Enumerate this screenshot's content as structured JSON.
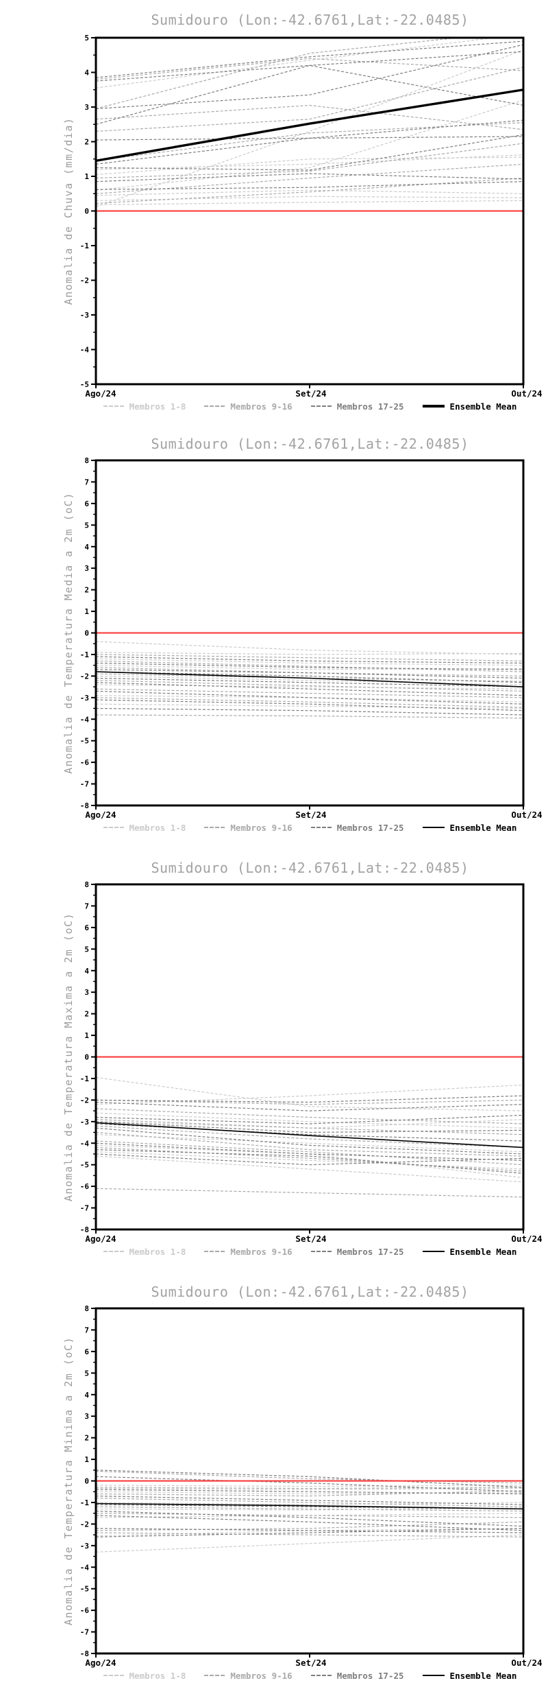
{
  "page": {
    "background": "#ffffff"
  },
  "chart_data": [
    {
      "type": "line",
      "title": "Sumidouro (Lon:-42.6761,Lat:-22.0485)",
      "ylabel": "Anomalia de Chuva (mm/dia)",
      "x_categories": [
        "Ago/24",
        "Set/24",
        "Out/24"
      ],
      "ylim": [
        -5,
        5
      ],
      "ytick_step": 1,
      "grid": false,
      "legend_position": "bottom",
      "zero_line": {
        "value": 0,
        "color": "#fa4743"
      },
      "groups": [
        {
          "name": "Membros 1-8",
          "color": "#cbcbcb",
          "lines": [
            [
              3.55,
              4.35,
              5.1
            ],
            [
              0.12,
              2.3,
              4.65
            ],
            [
              1.2,
              1.35,
              1.62
            ],
            [
              1.05,
              1.5,
              1.55
            ],
            [
              0.6,
              1.25,
              3.2
            ],
            [
              0.45,
              0.6,
              0.5
            ],
            [
              0.3,
              0.42,
              0.38
            ],
            [
              0.18,
              0.25,
              0.3
            ]
          ]
        },
        {
          "name": "Membros 9-16",
          "color": "#a9a9a9",
          "lines": [
            [
              3.8,
              4.4,
              4.05
            ],
            [
              2.95,
              4.55,
              5.2
            ],
            [
              2.65,
              3.05,
              2.35
            ],
            [
              2.3,
              2.65,
              4.15
            ],
            [
              1.45,
              2.25,
              2.55
            ],
            [
              0.95,
              1.15,
              1.95
            ],
            [
              0.5,
              0.95,
              1.35
            ],
            [
              0.22,
              0.55,
              0.95
            ]
          ]
        },
        {
          "name": "Membros 17-25",
          "color": "#7e7e7e",
          "lines": [
            [
              3.85,
              4.45,
              4.9
            ],
            [
              3.75,
              4.2,
              4.6
            ],
            [
              2.95,
              3.35,
              4.8
            ],
            [
              2.5,
              4.2,
              3.05
            ],
            [
              2.05,
              2.1,
              2.15
            ],
            [
              1.35,
              2.1,
              2.62
            ],
            [
              1.25,
              1.18,
              2.2
            ],
            [
              0.85,
              1.08,
              0.92
            ],
            [
              0.62,
              0.68,
              0.85
            ]
          ]
        }
      ],
      "ensemble_mean": {
        "name": "Ensemble Mean",
        "color": "#000000",
        "width": 3.4,
        "values": [
          1.45,
          2.52,
          3.5
        ]
      }
    },
    {
      "type": "line",
      "title": "Sumidouro (Lon:-42.6761,Lat:-22.0485)",
      "ylabel": "Anomalia de Temperatura Media a 2m (oC)",
      "x_categories": [
        "Ago/24",
        "Set/24",
        "Out/24"
      ],
      "ylim": [
        -8,
        8
      ],
      "ytick_step": 1,
      "grid": false,
      "legend_position": "bottom",
      "zero_line": {
        "value": 0,
        "color": "#fa4743"
      },
      "groups": [
        {
          "name": "Membros 1-8",
          "color": "#cbcbcb",
          "lines": [
            [
              -0.4,
              -0.8,
              -1.0
            ],
            [
              -0.9,
              -1.0,
              -0.95
            ],
            [
              -1.2,
              -1.4,
              -1.5
            ],
            [
              -1.5,
              -1.7,
              -1.65
            ],
            [
              -2.0,
              -2.2,
              -2.4
            ],
            [
              -2.4,
              -2.5,
              -2.6
            ],
            [
              -2.9,
              -3.0,
              -3.2
            ],
            [
              -3.3,
              -3.4,
              -3.5
            ]
          ]
        },
        {
          "name": "Membros 9-16",
          "color": "#a9a9a9",
          "lines": [
            [
              -1.0,
              -1.15,
              -1.3
            ],
            [
              -1.3,
              -1.55,
              -1.8
            ],
            [
              -1.6,
              -1.85,
              -2.0
            ],
            [
              -1.9,
              -2.1,
              -2.25
            ],
            [
              -2.2,
              -2.45,
              -2.7
            ],
            [
              -2.6,
              -2.8,
              -3.0
            ],
            [
              -3.0,
              -3.2,
              -3.45
            ],
            [
              -3.8,
              -3.85,
              -3.95
            ]
          ]
        },
        {
          "name": "Membros 17-25",
          "color": "#7e7e7e",
          "lines": [
            [
              -1.1,
              -1.3,
              -1.4
            ],
            [
              -1.4,
              -1.6,
              -1.7
            ],
            [
              -1.7,
              -1.85,
              -2.1
            ],
            [
              -1.8,
              -2.0,
              -2.3
            ],
            [
              -2.1,
              -2.3,
              -2.5
            ],
            [
              -2.3,
              -2.6,
              -2.9
            ],
            [
              -2.7,
              -3.0,
              -3.3
            ],
            [
              -3.1,
              -3.3,
              -3.6
            ],
            [
              -3.5,
              -3.6,
              -3.8
            ]
          ]
        }
      ],
      "ensemble_mean": {
        "name": "Ensemble Mean",
        "color": "#000000",
        "width": 1.6,
        "values": [
          -1.8,
          -2.1,
          -2.5
        ]
      }
    },
    {
      "type": "line",
      "title": "Sumidouro (Lon:-42.6761,Lat:-22.0485)",
      "ylabel": "Anomalia de Temperatura Maxima a 2m (oC)",
      "x_categories": [
        "Ago/24",
        "Set/24",
        "Out/24"
      ],
      "ylim": [
        -8,
        8
      ],
      "ytick_step": 1,
      "grid": false,
      "legend_position": "bottom",
      "zero_line": {
        "value": 0,
        "color": "#fa4743"
      },
      "groups": [
        {
          "name": "Membros 1-8",
          "color": "#cbcbcb",
          "lines": [
            [
              -0.95,
              -2.3,
              -2.5
            ],
            [
              -2.2,
              -1.8,
              -1.3
            ],
            [
              -2.6,
              -3.0,
              -3.3
            ],
            [
              -3.0,
              -3.3,
              -2.9
            ],
            [
              -3.6,
              -4.0,
              -4.4
            ],
            [
              -4.1,
              -4.5,
              -5.6
            ],
            [
              -4.4,
              -4.8,
              -5.2
            ],
            [
              -4.6,
              -5.2,
              -5.8
            ]
          ]
        },
        {
          "name": "Membros 9-16",
          "color": "#a9a9a9",
          "lines": [
            [
              -2.0,
              -2.2,
              -2.0
            ],
            [
              -2.4,
              -2.8,
              -3.1
            ],
            [
              -2.9,
              -3.3,
              -3.6
            ],
            [
              -3.2,
              -3.8,
              -4.2
            ],
            [
              -3.5,
              -4.3,
              -4.6
            ],
            [
              -3.9,
              -4.4,
              -5.0
            ],
            [
              -4.2,
              -4.7,
              -5.3
            ],
            [
              -6.1,
              -6.3,
              -6.5
            ]
          ]
        },
        {
          "name": "Membros 17-25",
          "color": "#7e7e7e",
          "lines": [
            [
              -2.0,
              -2.1,
              -1.8
            ],
            [
              -2.1,
              -2.5,
              -2.2
            ],
            [
              -2.8,
              -3.1,
              -2.7
            ],
            [
              -3.0,
              -3.5,
              -3.4
            ],
            [
              -3.1,
              -3.6,
              -3.9
            ],
            [
              -3.3,
              -4.1,
              -4.5
            ],
            [
              -4.0,
              -4.5,
              -4.8
            ],
            [
              -4.3,
              -4.6,
              -5.4
            ],
            [
              -4.5,
              -5.0,
              -4.7
            ]
          ]
        }
      ],
      "ensemble_mean": {
        "name": "Ensemble Mean",
        "color": "#000000",
        "width": 1.6,
        "values": [
          -3.05,
          -3.65,
          -4.2
        ]
      }
    },
    {
      "type": "line",
      "title": "Sumidouro (Lon:-42.6761,Lat:-22.0485)",
      "ylabel": "Anomalia de Temperatura Minima a 2m (oC)",
      "x_categories": [
        "Ago/24",
        "Set/24",
        "Out/24"
      ],
      "ylim": [
        -8,
        8
      ],
      "ytick_step": 1,
      "grid": false,
      "legend_position": "bottom",
      "zero_line": {
        "value": 0,
        "color": "#fa4743"
      },
      "groups": [
        {
          "name": "Membros 1-8",
          "color": "#cbcbcb",
          "lines": [
            [
              -0.2,
              -0.25,
              -0.2
            ],
            [
              -0.35,
              -0.4,
              -0.35
            ],
            [
              -0.5,
              -0.6,
              -0.55
            ],
            [
              -1.0,
              -1.1,
              -1.0
            ],
            [
              -1.3,
              -1.35,
              -1.25
            ],
            [
              -1.7,
              -1.6,
              -1.5
            ],
            [
              -2.55,
              -2.3,
              -2.2
            ],
            [
              -3.3,
              -2.9,
              -2.5
            ]
          ]
        },
        {
          "name": "Membros 9-16",
          "color": "#a9a9a9",
          "lines": [
            [
              0.45,
              0.1,
              -0.1
            ],
            [
              -0.3,
              -0.35,
              -0.3
            ],
            [
              -0.6,
              -0.7,
              -0.45
            ],
            [
              -0.8,
              -1.0,
              -1.2
            ],
            [
              -1.2,
              -1.3,
              -1.4
            ],
            [
              -1.5,
              -1.6,
              -1.7
            ],
            [
              -2.3,
              -2.2,
              -1.9
            ],
            [
              -2.4,
              -2.5,
              -2.6
            ]
          ]
        },
        {
          "name": "Membros 17-25",
          "color": "#7e7e7e",
          "lines": [
            [
              0.5,
              0.2,
              -0.3
            ],
            [
              0.2,
              -0.1,
              -0.5
            ],
            [
              -0.4,
              -0.5,
              -0.6
            ],
            [
              -0.7,
              -0.9,
              -1.1
            ],
            [
              -1.1,
              -1.2,
              -1.3
            ],
            [
              -1.4,
              -1.7,
              -2.1
            ],
            [
              -1.6,
              -1.9,
              -2.3
            ],
            [
              -2.2,
              -2.3,
              -2.4
            ],
            [
              -2.6,
              -2.4,
              -2.2
            ]
          ]
        }
      ],
      "ensemble_mean": {
        "name": "Ensemble Mean",
        "color": "#000000",
        "width": 1.6,
        "values": [
          -1.05,
          -1.15,
          -1.3
        ]
      }
    }
  ]
}
